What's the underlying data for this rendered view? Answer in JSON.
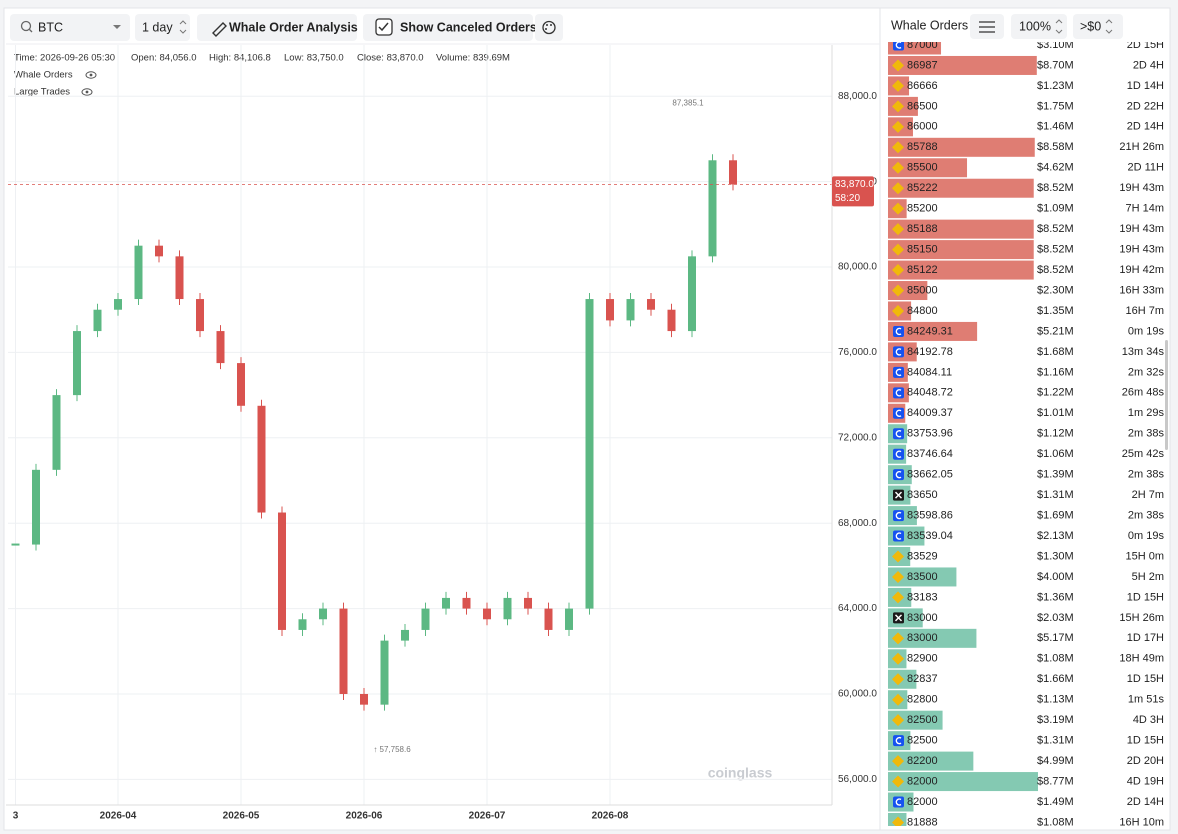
{
  "toolbar": {
    "symbol": "BTC",
    "interval": "1 day",
    "analysis_button": "Whale Order Analysis",
    "canceled_toggle": "Show Canceled Orders"
  },
  "chart_header": {
    "time": "Time: 2026-09-26 05:30",
    "open": "Open: 84,056.0",
    "high": "High: 84,106.8",
    "low": "Low: 83,750.0",
    "close": "Close: 83,870.0",
    "volume": "Volume: 839.69M"
  },
  "layers": [
    "Whale Orders",
    "Large Trades"
  ],
  "watermark": "coinglass",
  "chart_data": {
    "type": "candle-line",
    "categories": [
      "3",
      null,
      null,
      null,
      null,
      "2026-04",
      null,
      null,
      null,
      null,
      null,
      "2026-05",
      null,
      null,
      null,
      null,
      null,
      "2026-06",
      null,
      null,
      null,
      null,
      null,
      "2026-07",
      null,
      null,
      null,
      null,
      null,
      "2026-08",
      null,
      null,
      null,
      null,
      null,
      null
    ],
    "values": [
      67000,
      70500,
      74000,
      77000,
      78000,
      78500,
      81000,
      80500,
      78500,
      77000,
      75500,
      73500,
      68500,
      63000,
      63500,
      64000,
      60000,
      59500,
      62500,
      63000,
      64000,
      64500,
      64000,
      63500,
      64500,
      64000,
      63000,
      64000,
      78500,
      77500,
      78500,
      78000,
      77000,
      80500,
      85000,
      83870
    ],
    "up_color": "#5cb883",
    "down_color": "#d9534f",
    "ylim": [
      54800,
      90400
    ],
    "yticks": [
      {
        "value": 56000,
        "label": "56,000.0"
      },
      {
        "value": 60000,
        "label": "60,000.0"
      },
      {
        "value": 64000,
        "label": "64,000.0"
      },
      {
        "value": 68000,
        "label": "68,000.0"
      },
      {
        "value": 72000,
        "label": "72,000.0"
      },
      {
        "value": 76000,
        "label": "76,000.0"
      },
      {
        "value": 80000,
        "label": "80,000.0"
      },
      {
        "value": 84000,
        "label": "84,000.0"
      },
      {
        "value": 88000,
        "label": "88,000.0"
      }
    ],
    "grid": true,
    "current_price": {
      "value": 83870,
      "label": "83,870.0"
    },
    "countdown": "58:20",
    "annotations": [
      {
        "value": 87385.1,
        "label": "87,385.1"
      },
      {
        "value": 57758.6,
        "label": "↑ 57,758.6"
      }
    ]
  },
  "order_book": {
    "title": "Whale Orders",
    "scale": "100%",
    "filter": ">$0",
    "max_amount": 8.77,
    "rows": [
      {
        "price": 87000,
        "amount": {
          "value": 3.1,
          "label": "$3.10M"
        },
        "age": "2D 15H",
        "color": "#d9665b",
        "icon": "#1652f0"
      },
      {
        "price": 86987,
        "amount": {
          "value": 8.7,
          "label": "$8.70M"
        },
        "age": "2D 4H",
        "color": "#d9665b",
        "icon": "#f0b90b"
      },
      {
        "price": 86666,
        "amount": {
          "value": 1.23,
          "label": "$1.23M"
        },
        "age": "1D 14H",
        "color": "#d9665b",
        "icon": "#f0b90b"
      },
      {
        "price": 86500,
        "amount": {
          "value": 1.75,
          "label": "$1.75M"
        },
        "age": "2D 22H",
        "color": "#d9665b",
        "icon": "#f0b90b"
      },
      {
        "price": 86000,
        "amount": {
          "value": 1.46,
          "label": "$1.46M"
        },
        "age": "2D 14H",
        "color": "#d9665b",
        "icon": "#f0b90b"
      },
      {
        "price": 85788,
        "amount": {
          "value": 8.58,
          "label": "$8.58M"
        },
        "age": "21H 26m",
        "color": "#d9665b",
        "icon": "#f0b90b"
      },
      {
        "price": 85500,
        "amount": {
          "value": 4.62,
          "label": "$4.62M"
        },
        "age": "2D 11H",
        "color": "#d9665b",
        "icon": "#f0b90b"
      },
      {
        "price": 85222,
        "amount": {
          "value": 8.52,
          "label": "$8.52M"
        },
        "age": "19H 43m",
        "color": "#d9665b",
        "icon": "#f0b90b"
      },
      {
        "price": 85200,
        "amount": {
          "value": 1.09,
          "label": "$1.09M"
        },
        "age": "7H 14m",
        "color": "#d9665b",
        "icon": "#f0b90b"
      },
      {
        "price": 85188,
        "amount": {
          "value": 8.52,
          "label": "$8.52M"
        },
        "age": "19H 43m",
        "color": "#d9665b",
        "icon": "#f0b90b"
      },
      {
        "price": 85150,
        "amount": {
          "value": 8.52,
          "label": "$8.52M"
        },
        "age": "19H 43m",
        "color": "#d9665b",
        "icon": "#f0b90b"
      },
      {
        "price": 85122,
        "amount": {
          "value": 8.52,
          "label": "$8.52M"
        },
        "age": "19H 42m",
        "color": "#d9665b",
        "icon": "#f0b90b"
      },
      {
        "price": 85000,
        "amount": {
          "value": 2.3,
          "label": "$2.30M"
        },
        "age": "16H 33m",
        "color": "#d9665b",
        "icon": "#f0b90b"
      },
      {
        "price": 84800,
        "amount": {
          "value": 1.35,
          "label": "$1.35M"
        },
        "age": "16H 7m",
        "color": "#d9665b",
        "icon": "#f0b90b"
      },
      {
        "price": 84249.31,
        "amount": {
          "value": 5.21,
          "label": "$5.21M"
        },
        "age": "0m 19s",
        "color": "#d9665b",
        "icon": "#1652f0"
      },
      {
        "price": 84192.78,
        "amount": {
          "value": 1.68,
          "label": "$1.68M"
        },
        "age": "13m 34s",
        "color": "#d9665b",
        "icon": "#1652f0"
      },
      {
        "price": 84084.11,
        "amount": {
          "value": 1.16,
          "label": "$1.16M"
        },
        "age": "2m 32s",
        "color": "#d9665b",
        "icon": "#1652f0"
      },
      {
        "price": 84048.72,
        "amount": {
          "value": 1.22,
          "label": "$1.22M"
        },
        "age": "26m 48s",
        "color": "#d9665b",
        "icon": "#1652f0"
      },
      {
        "price": 84009.37,
        "amount": {
          "value": 1.01,
          "label": "$1.01M"
        },
        "age": "1m 29s",
        "color": "#d9665b",
        "icon": "#1652f0"
      },
      {
        "price": 83753.96,
        "amount": {
          "value": 1.12,
          "label": "$1.12M"
        },
        "age": "2m 38s",
        "color": "#6fbfa4",
        "icon": "#1652f0"
      },
      {
        "price": 83746.64,
        "amount": {
          "value": 1.06,
          "label": "$1.06M"
        },
        "age": "25m 42s",
        "color": "#6fbfa4",
        "icon": "#1652f0"
      },
      {
        "price": 83662.05,
        "amount": {
          "value": 1.39,
          "label": "$1.39M"
        },
        "age": "2m 38s",
        "color": "#6fbfa4",
        "icon": "#1652f0"
      },
      {
        "price": 83650,
        "amount": {
          "value": 1.31,
          "label": "$1.31M"
        },
        "age": "2H 7m",
        "color": "#6fbfa4",
        "icon": "#1a1a1a"
      },
      {
        "price": 83598.86,
        "amount": {
          "value": 1.69,
          "label": "$1.69M"
        },
        "age": "2m 38s",
        "color": "#6fbfa4",
        "icon": "#1652f0"
      },
      {
        "price": 83539.04,
        "amount": {
          "value": 2.13,
          "label": "$2.13M"
        },
        "age": "0m 19s",
        "color": "#6fbfa4",
        "icon": "#1652f0"
      },
      {
        "price": 83529,
        "amount": {
          "value": 1.3,
          "label": "$1.30M"
        },
        "age": "15H 0m",
        "color": "#6fbfa4",
        "icon": "#f0b90b"
      },
      {
        "price": 83500,
        "amount": {
          "value": 4.0,
          "label": "$4.00M"
        },
        "age": "5H 2m",
        "color": "#6fbfa4",
        "icon": "#f0b90b"
      },
      {
        "price": 83183,
        "amount": {
          "value": 1.36,
          "label": "$1.36M"
        },
        "age": "1D 15H",
        "color": "#6fbfa4",
        "icon": "#f0b90b"
      },
      {
        "price": 83000,
        "amount": {
          "value": 2.03,
          "label": "$2.03M"
        },
        "age": "15H 26m",
        "color": "#6fbfa4",
        "icon": "#1a1a1a"
      },
      {
        "price": 83000,
        "amount": {
          "value": 5.17,
          "label": "$5.17M"
        },
        "age": "1D 17H",
        "color": "#6fbfa4",
        "icon": "#f0b90b"
      },
      {
        "price": 82900,
        "amount": {
          "value": 1.08,
          "label": "$1.08M"
        },
        "age": "18H 49m",
        "color": "#6fbfa4",
        "icon": "#f0b90b"
      },
      {
        "price": 82837,
        "amount": {
          "value": 1.66,
          "label": "$1.66M"
        },
        "age": "1D 15H",
        "color": "#6fbfa4",
        "icon": "#f0b90b"
      },
      {
        "price": 82800,
        "amount": {
          "value": 1.13,
          "label": "$1.13M"
        },
        "age": "1m 51s",
        "color": "#6fbfa4",
        "icon": "#f0b90b"
      },
      {
        "price": 82500,
        "amount": {
          "value": 3.19,
          "label": "$3.19M"
        },
        "age": "4D 3H",
        "color": "#6fbfa4",
        "icon": "#f0b90b"
      },
      {
        "price": 82500,
        "amount": {
          "value": 1.31,
          "label": "$1.31M"
        },
        "age": "1D 15H",
        "color": "#6fbfa4",
        "icon": "#1652f0"
      },
      {
        "price": 82200,
        "amount": {
          "value": 4.99,
          "label": "$4.99M"
        },
        "age": "2D 20H",
        "color": "#6fbfa4",
        "icon": "#f0b90b"
      },
      {
        "price": 82000,
        "amount": {
          "value": 8.77,
          "label": "$8.77M"
        },
        "age": "4D 19H",
        "color": "#6fbfa4",
        "icon": "#f0b90b"
      },
      {
        "price": 82000,
        "amount": {
          "value": 1.49,
          "label": "$1.49M"
        },
        "age": "2D 14H",
        "color": "#6fbfa4",
        "icon": "#1652f0"
      },
      {
        "price": 81888,
        "amount": {
          "value": 1.08,
          "label": "$1.08M"
        },
        "age": "16H 10m",
        "color": "#6fbfa4",
        "icon": "#f0b90b"
      }
    ]
  }
}
